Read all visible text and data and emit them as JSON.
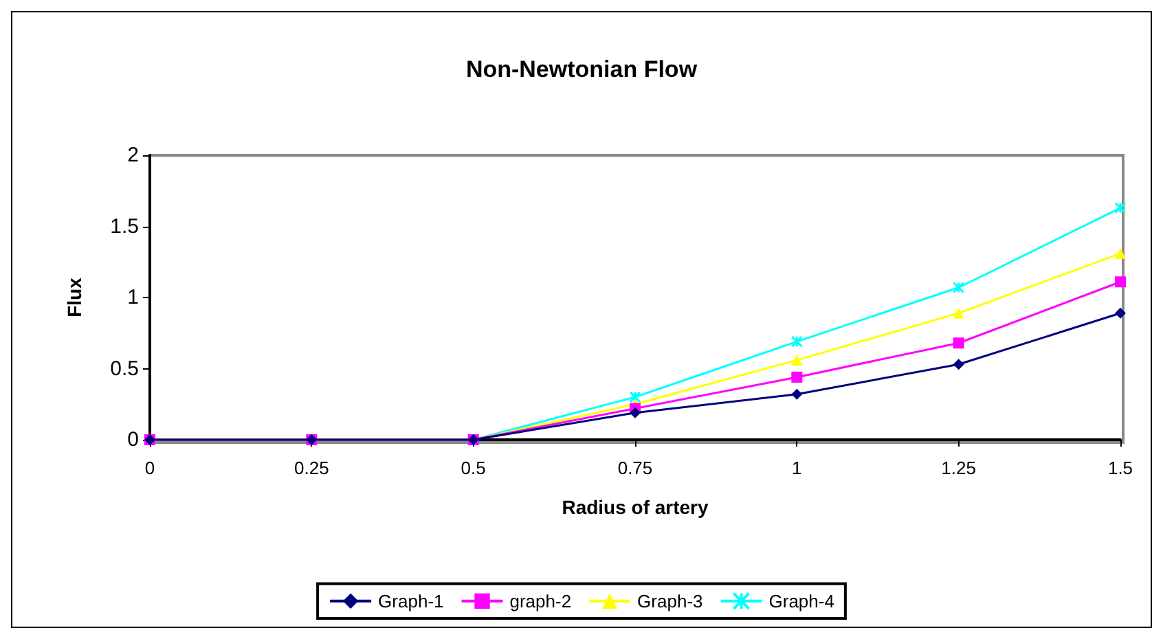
{
  "chart_data": {
    "type": "line",
    "title": "Non-Newtonian Flow",
    "xlabel": "Radius of artery",
    "ylabel": "Flux",
    "x": [
      0,
      0.25,
      0.5,
      0.75,
      1,
      1.25,
      1.5
    ],
    "series": [
      {
        "name": "Graph-1",
        "color": "#000080",
        "marker": "diamond",
        "values": [
          0,
          0,
          0,
          0.19,
          0.32,
          0.53,
          0.89
        ]
      },
      {
        "name": "graph-2",
        "color": "#ff00ff",
        "marker": "square",
        "values": [
          0,
          0,
          0,
          0.22,
          0.44,
          0.68,
          1.11
        ]
      },
      {
        "name": "Graph-3",
        "color": "#ffff00",
        "marker": "triangle",
        "values": [
          0,
          0,
          0,
          0.25,
          0.56,
          0.89,
          1.31
        ]
      },
      {
        "name": "Graph-4",
        "color": "#00ffff",
        "marker": "cross",
        "values": [
          0,
          0,
          0,
          0.3,
          0.69,
          1.07,
          1.63
        ]
      }
    ],
    "xlim": [
      0,
      1.5
    ],
    "xticks": [
      0,
      0.25,
      0.5,
      0.75,
      1,
      1.25,
      1.5
    ],
    "ylim": [
      0,
      2
    ],
    "yticks": [
      0,
      0.5,
      1,
      1.5,
      2
    ],
    "grid": false,
    "legend": "bottom",
    "line_style": "solid"
  }
}
